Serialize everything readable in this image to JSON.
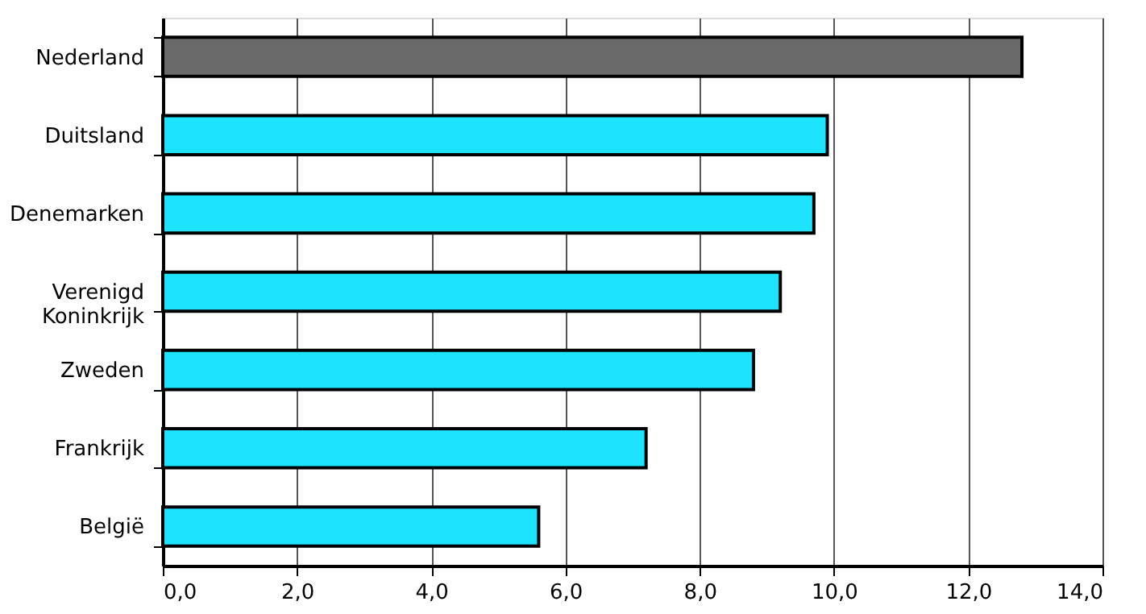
{
  "chart_data": {
    "type": "bar",
    "orientation": "horizontal",
    "categories": [
      "Nederland",
      "Duitsland",
      "Denemarken",
      "Verenigd Koninkrijk",
      "Zweden",
      "Frankrijk",
      "België"
    ],
    "values": [
      12.8,
      9.9,
      9.7,
      9.2,
      8.8,
      7.2,
      5.6
    ],
    "colors": [
      "#6a6a6a",
      "#1ee3ff",
      "#1ee3ff",
      "#1ee3ff",
      "#1ee3ff",
      "#1ee3ff",
      "#1ee3ff"
    ],
    "xlim": [
      0,
      14
    ],
    "xticks": [
      {
        "value": 0,
        "label": "0,0"
      },
      {
        "value": 2,
        "label": "2,0"
      },
      {
        "value": 4,
        "label": "4,0"
      },
      {
        "value": 6,
        "label": "6,0"
      },
      {
        "value": 8,
        "label": "8,0"
      },
      {
        "value": 10,
        "label": "10,0"
      },
      {
        "value": 12,
        "label": "12,0"
      },
      {
        "value": 14,
        "label": "14,0"
      }
    ],
    "grid": "x"
  }
}
